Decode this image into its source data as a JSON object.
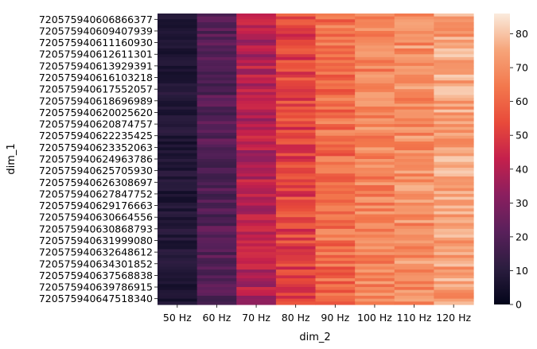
{
  "chart_data": {
    "type": "heatmap",
    "xlabel": "dim_2",
    "ylabel": "dim_1",
    "columns": [
      "50 Hz",
      "60 Hz",
      "70 Hz",
      "80 Hz",
      "90 Hz",
      "100 Hz",
      "110 Hz",
      "120 Hz"
    ],
    "row_tick_labels": [
      "720575940606866377",
      "720575940609407939",
      "720575940611160930",
      "720575940612611301",
      "720575940613929391",
      "720575940616103218",
      "720575940617552057",
      "720575940618696989",
      "720575940620025620",
      "720575940620874757",
      "720575940622235425",
      "720575940623352063",
      "720575940624963786",
      "720575940625705930",
      "720575940626308697",
      "720575940627847752",
      "720575940629176663",
      "720575940630664556",
      "720575940630868793",
      "720575940631999080",
      "720575940632648612",
      "720575940634301852",
      "720575940637568838",
      "720575940639786915",
      "720575940647518340"
    ],
    "rows_per_tick": 4,
    "column_means": [
      8,
      20,
      40,
      52,
      62,
      68,
      70,
      74
    ],
    "column_spread": [
      4,
      6,
      8,
      9,
      9,
      8,
      8,
      8
    ],
    "colorbar": {
      "min": 0,
      "max": 86,
      "ticks": [
        0,
        10,
        20,
        30,
        40,
        50,
        60,
        70,
        80
      ]
    },
    "grid": false,
    "legend": "colorbar-right"
  }
}
